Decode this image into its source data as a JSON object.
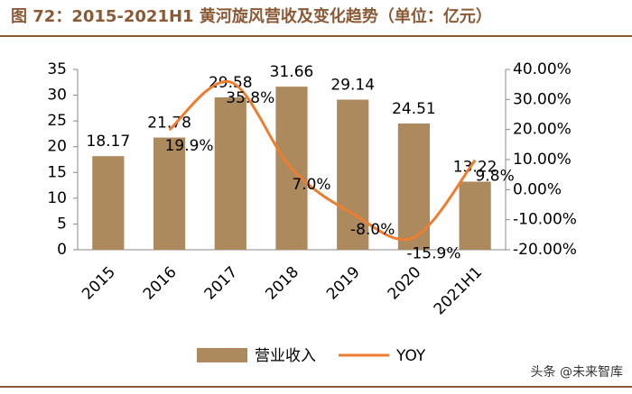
{
  "chart_data": {
    "type": "bar",
    "title": "图 72：2015-2021H1 黄河旋风营收及变化趋势（单位：亿元）",
    "watermark": "头条 @未来智库",
    "categories": [
      "2015",
      "2016",
      "2017",
      "2018",
      "2019",
      "2020",
      "2021H1"
    ],
    "series": [
      {
        "name": "营业收入",
        "type": "bar",
        "color": "#ad8a5e",
        "values": [
          18.17,
          21.78,
          29.58,
          31.66,
          29.14,
          24.51,
          13.22
        ]
      },
      {
        "name": "YOY",
        "type": "line",
        "axis": "y2",
        "color": "#ed7d31",
        "values": [
          null,
          19.9,
          35.8,
          7.0,
          -8.0,
          -15.9,
          9.8
        ],
        "value_labels": [
          null,
          "19.9%",
          "35.8%",
          "7.0%",
          "-8.0%",
          "-15.9%",
          "9.8%"
        ]
      }
    ],
    "ylim": [
      0,
      35
    ],
    "yticks": [
      0,
      5,
      10,
      15,
      20,
      25,
      30,
      35
    ],
    "y2lim": [
      -20,
      40
    ],
    "y2ticks": [
      {
        "value": -20,
        "label": "-20.00%"
      },
      {
        "value": -10,
        "label": "-10.00%"
      },
      {
        "value": 0,
        "label": "0.00%"
      },
      {
        "value": 10,
        "label": "10.00%"
      },
      {
        "value": 20,
        "label": "20.00%"
      },
      {
        "value": 30,
        "label": "30.00%"
      },
      {
        "value": 40,
        "label": "40.00%"
      }
    ],
    "grid": false,
    "legend": "bottom"
  }
}
